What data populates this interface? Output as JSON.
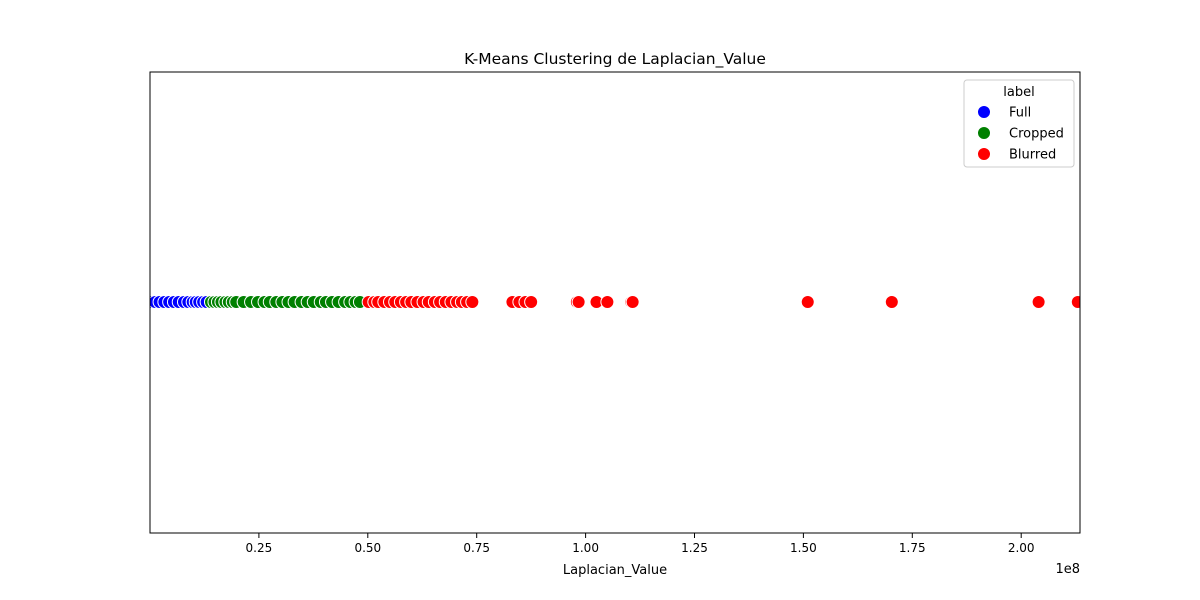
{
  "chart_data": {
    "type": "scatter",
    "title": "K-Means Clustering de Laplacian_Value",
    "xlabel": "Laplacian_Value",
    "ylabel": "",
    "x_offset_label": "1e8",
    "xlim": [
      0.0,
      2.135
    ],
    "x_ticks": [
      0.25,
      0.5,
      0.75,
      1.0,
      1.25,
      1.5,
      1.75,
      2.0
    ],
    "x_tick_labels": [
      "0.25",
      "0.50",
      "0.75",
      "1.00",
      "1.25",
      "1.50",
      "1.75",
      "2.00"
    ],
    "grid": false,
    "legend": {
      "title": "label",
      "placement": "top-right"
    },
    "series": [
      {
        "name": "Full",
        "color": "#0000ff",
        "x": [
          0.002,
          0.012,
          0.022,
          0.033,
          0.044,
          0.055,
          0.066,
          0.078,
          0.088,
          0.098,
          0.105,
          0.113,
          0.122,
          0.13
        ]
      },
      {
        "name": "Cropped",
        "color": "#008000",
        "x": [
          0.14,
          0.148,
          0.156,
          0.164,
          0.173,
          0.181,
          0.19,
          0.198,
          0.215,
          0.232,
          0.248,
          0.263,
          0.275,
          0.29,
          0.304,
          0.318,
          0.332,
          0.348,
          0.362,
          0.376,
          0.392,
          0.404,
          0.418,
          0.433,
          0.448,
          0.46,
          0.472,
          0.482
        ]
      },
      {
        "name": "Blurred",
        "color": "#ff0000",
        "x": [
          0.502,
          0.515,
          0.524,
          0.538,
          0.551,
          0.563,
          0.576,
          0.588,
          0.6,
          0.614,
          0.628,
          0.64,
          0.654,
          0.666,
          0.679,
          0.692,
          0.705,
          0.716,
          0.728,
          0.74,
          0.832,
          0.848,
          0.862,
          0.875,
          0.98,
          0.984,
          1.025,
          1.05,
          1.105,
          1.108,
          1.51,
          1.703,
          2.04,
          2.13
        ]
      }
    ]
  }
}
